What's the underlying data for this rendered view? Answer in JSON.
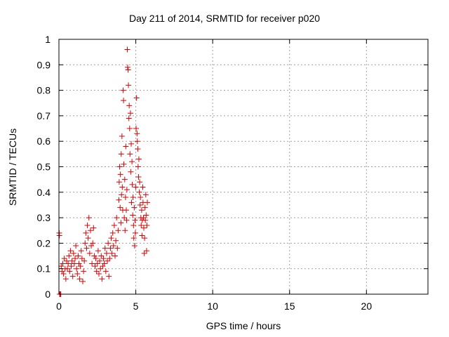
{
  "chart_data": {
    "type": "scatter",
    "title": "Day 211 of 2014, SRMTID for receiver p020",
    "xlabel": "GPS time / hours",
    "ylabel": "SRMTID / TECUs",
    "xlim": [
      0,
      24
    ],
    "ylim": [
      0,
      1
    ],
    "xticks": [
      0,
      5,
      10,
      15,
      20
    ],
    "xtick_labels": [
      "0",
      "5",
      "10",
      "15",
      "20"
    ],
    "yticks": [
      0,
      0.1,
      0.2,
      0.3,
      0.4,
      0.5,
      0.6,
      0.7,
      0.8,
      0.9,
      1
    ],
    "ytick_labels": [
      "0",
      "0.1",
      "0.2",
      "0.3",
      "0.4",
      "0.5",
      "0.6",
      "0.7",
      "0.8",
      "0.9",
      "1"
    ],
    "grid": true,
    "marker": "+",
    "color": "#dd0000",
    "series": [
      {
        "name": "SRMTID",
        "points": [
          [
            0.02,
            0.24
          ],
          [
            0.03,
            0.23
          ],
          [
            0.05,
            0.0
          ],
          [
            0.06,
            0.0
          ],
          [
            0.1,
            0.0
          ],
          [
            0.12,
            0.0
          ],
          [
            0.15,
            0.11
          ],
          [
            0.2,
            0.09
          ],
          [
            0.25,
            0.12
          ],
          [
            0.3,
            0.08
          ],
          [
            0.35,
            0.14
          ],
          [
            0.4,
            0.1
          ],
          [
            0.45,
            0.06
          ],
          [
            0.5,
            0.13
          ],
          [
            0.55,
            0.1
          ],
          [
            0.6,
            0.12
          ],
          [
            0.65,
            0.15
          ],
          [
            0.7,
            0.09
          ],
          [
            0.75,
            0.17
          ],
          [
            0.8,
            0.11
          ],
          [
            0.85,
            0.13
          ],
          [
            0.9,
            0.07
          ],
          [
            0.95,
            0.16
          ],
          [
            1.0,
            0.12
          ],
          [
            1.05,
            0.14
          ],
          [
            1.1,
            0.19
          ],
          [
            1.15,
            0.1
          ],
          [
            1.2,
            0.08
          ],
          [
            1.25,
            0.15
          ],
          [
            1.3,
            0.12
          ],
          [
            1.35,
            0.06
          ],
          [
            1.4,
            0.11
          ],
          [
            1.45,
            0.17
          ],
          [
            1.5,
            0.14
          ],
          [
            1.55,
            0.05
          ],
          [
            1.6,
            0.09
          ],
          [
            1.65,
            0.13
          ],
          [
            1.7,
            0.2
          ],
          [
            1.75,
            0.24
          ],
          [
            1.8,
            0.18
          ],
          [
            1.85,
            0.27
          ],
          [
            1.9,
            0.22
          ],
          [
            1.95,
            0.3
          ],
          [
            2.0,
            0.16
          ],
          [
            2.05,
            0.25
          ],
          [
            2.1,
            0.19
          ],
          [
            2.15,
            0.12
          ],
          [
            2.2,
            0.2
          ],
          [
            2.25,
            0.26
          ],
          [
            2.3,
            0.15
          ],
          [
            2.35,
            0.11
          ],
          [
            2.4,
            0.14
          ],
          [
            2.45,
            0.09
          ],
          [
            2.5,
            0.12
          ],
          [
            2.55,
            0.17
          ],
          [
            2.6,
            0.08
          ],
          [
            2.65,
            0.13
          ],
          [
            2.7,
            0.1
          ],
          [
            2.75,
            0.15
          ],
          [
            2.8,
            0.06
          ],
          [
            2.85,
            0.11
          ],
          [
            2.9,
            0.14
          ],
          [
            2.95,
            0.12
          ],
          [
            3.0,
            0.18
          ],
          [
            3.05,
            0.09
          ],
          [
            3.1,
            0.16
          ],
          [
            3.15,
            0.13
          ],
          [
            3.2,
            0.2
          ],
          [
            3.25,
            0.07
          ],
          [
            3.3,
            0.14
          ],
          [
            3.35,
            0.18
          ],
          [
            3.4,
            0.22
          ],
          [
            3.45,
            0.16
          ],
          [
            3.5,
            0.24
          ],
          [
            3.55,
            0.19
          ],
          [
            3.6,
            0.27
          ],
          [
            3.65,
            0.15
          ],
          [
            3.7,
            0.21
          ],
          [
            3.75,
            0.3
          ],
          [
            3.8,
            0.18
          ],
          [
            3.85,
            0.25
          ],
          [
            3.9,
            0.37
          ],
          [
            3.92,
            0.44
          ],
          [
            3.95,
            0.5
          ],
          [
            3.98,
            0.34
          ],
          [
            4.0,
            0.47
          ],
          [
            4.03,
            0.28
          ],
          [
            4.05,
            0.55
          ],
          [
            4.07,
            0.39
          ],
          [
            4.1,
            0.62
          ],
          [
            4.12,
            0.42
          ],
          [
            4.15,
            0.33
          ],
          [
            4.18,
            0.8
          ],
          [
            4.2,
            0.76
          ],
          [
            4.22,
            0.51
          ],
          [
            4.25,
            0.3
          ],
          [
            4.28,
            0.45
          ],
          [
            4.3,
            0.25
          ],
          [
            4.33,
            0.38
          ],
          [
            4.35,
            0.58
          ],
          [
            4.38,
            0.33
          ],
          [
            4.4,
            0.29
          ],
          [
            4.42,
            0.41
          ],
          [
            4.45,
            0.96
          ],
          [
            4.47,
            0.89
          ],
          [
            4.5,
            0.88
          ],
          [
            4.52,
            0.82
          ],
          [
            4.55,
            0.69
          ],
          [
            4.57,
            0.74
          ],
          [
            4.6,
            0.65
          ],
          [
            4.62,
            0.55
          ],
          [
            4.65,
            0.71
          ],
          [
            4.67,
            0.48
          ],
          [
            4.7,
            0.59
          ],
          [
            4.72,
            0.36
          ],
          [
            4.75,
            0.52
          ],
          [
            4.77,
            0.43
          ],
          [
            4.8,
            0.31
          ],
          [
            4.82,
            0.38
          ],
          [
            4.85,
            0.27
          ],
          [
            4.87,
            0.22
          ],
          [
            4.9,
            0.34
          ],
          [
            4.92,
            0.19
          ],
          [
            4.95,
            0.29
          ],
          [
            4.97,
            0.24
          ],
          [
            5.0,
            0.42
          ],
          [
            5.02,
            0.65
          ],
          [
            5.05,
            0.77
          ],
          [
            5.08,
            0.63
          ],
          [
            5.1,
            0.6
          ],
          [
            5.13,
            0.57
          ],
          [
            5.15,
            0.5
          ],
          [
            5.18,
            0.46
          ],
          [
            5.2,
            0.53
          ],
          [
            5.23,
            0.4
          ],
          [
            5.25,
            0.44
          ],
          [
            5.28,
            0.35
          ],
          [
            5.3,
            0.38
          ],
          [
            5.33,
            0.3
          ],
          [
            5.35,
            0.27
          ],
          [
            5.38,
            0.33
          ],
          [
            5.4,
            0.23
          ],
          [
            5.42,
            0.29
          ],
          [
            5.45,
            0.42
          ],
          [
            5.47,
            0.36
          ],
          [
            5.5,
            0.3
          ],
          [
            5.52,
            0.26
          ],
          [
            5.55,
            0.16
          ],
          [
            5.57,
            0.22
          ],
          [
            5.6,
            0.34
          ],
          [
            5.62,
            0.29
          ],
          [
            5.65,
            0.39
          ],
          [
            5.67,
            0.31
          ],
          [
            5.7,
            0.17
          ],
          [
            5.72,
            0.27
          ],
          [
            5.75,
            0.36
          ]
        ]
      }
    ]
  }
}
